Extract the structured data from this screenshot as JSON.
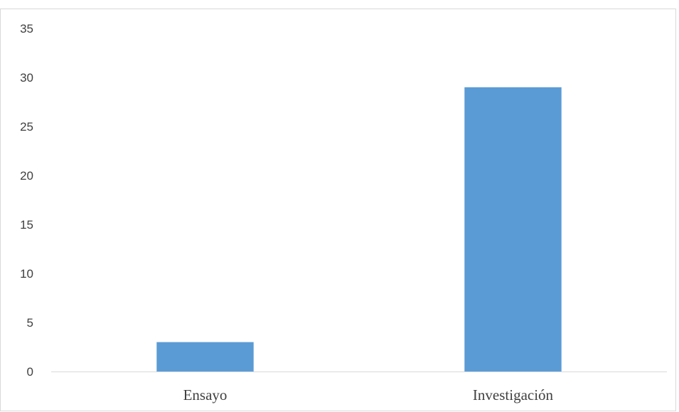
{
  "chart_data": {
    "type": "bar",
    "title": "",
    "xlabel": "",
    "ylabel": "",
    "categories": [
      "Ensayo",
      "Investigación"
    ],
    "values": [
      3,
      29
    ],
    "ylim": [
      0,
      35
    ],
    "yticks": [
      0,
      5,
      10,
      15,
      20,
      25,
      30,
      35
    ],
    "grid": false,
    "legend": "none",
    "bar_color": "#5B9BD5"
  }
}
